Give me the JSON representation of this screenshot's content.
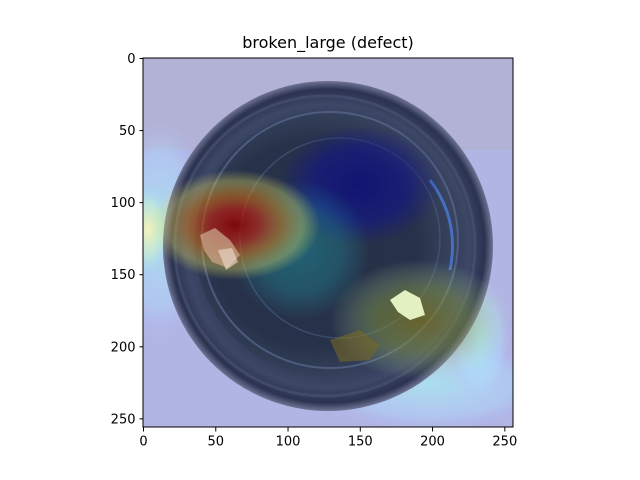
{
  "figure": {
    "title": "broken_large (defect)"
  },
  "axes": {
    "x_ticks": [
      "0",
      "50",
      "100",
      "150",
      "200",
      "250"
    ],
    "y_ticks": [
      "0",
      "50",
      "100",
      "150",
      "200",
      "250"
    ],
    "x_range": [
      0,
      256
    ],
    "y_range": [
      0,
      256
    ],
    "y_inverted": true,
    "grid": false
  },
  "image": {
    "subject": "top view of a glass bottle bottom with a broken area on the left",
    "overlay": "jet-colormap heatmap, strongest activation at left (~x 60, y 110)"
  },
  "colors": {
    "background": "#ffffff",
    "axis": "#000000"
  }
}
